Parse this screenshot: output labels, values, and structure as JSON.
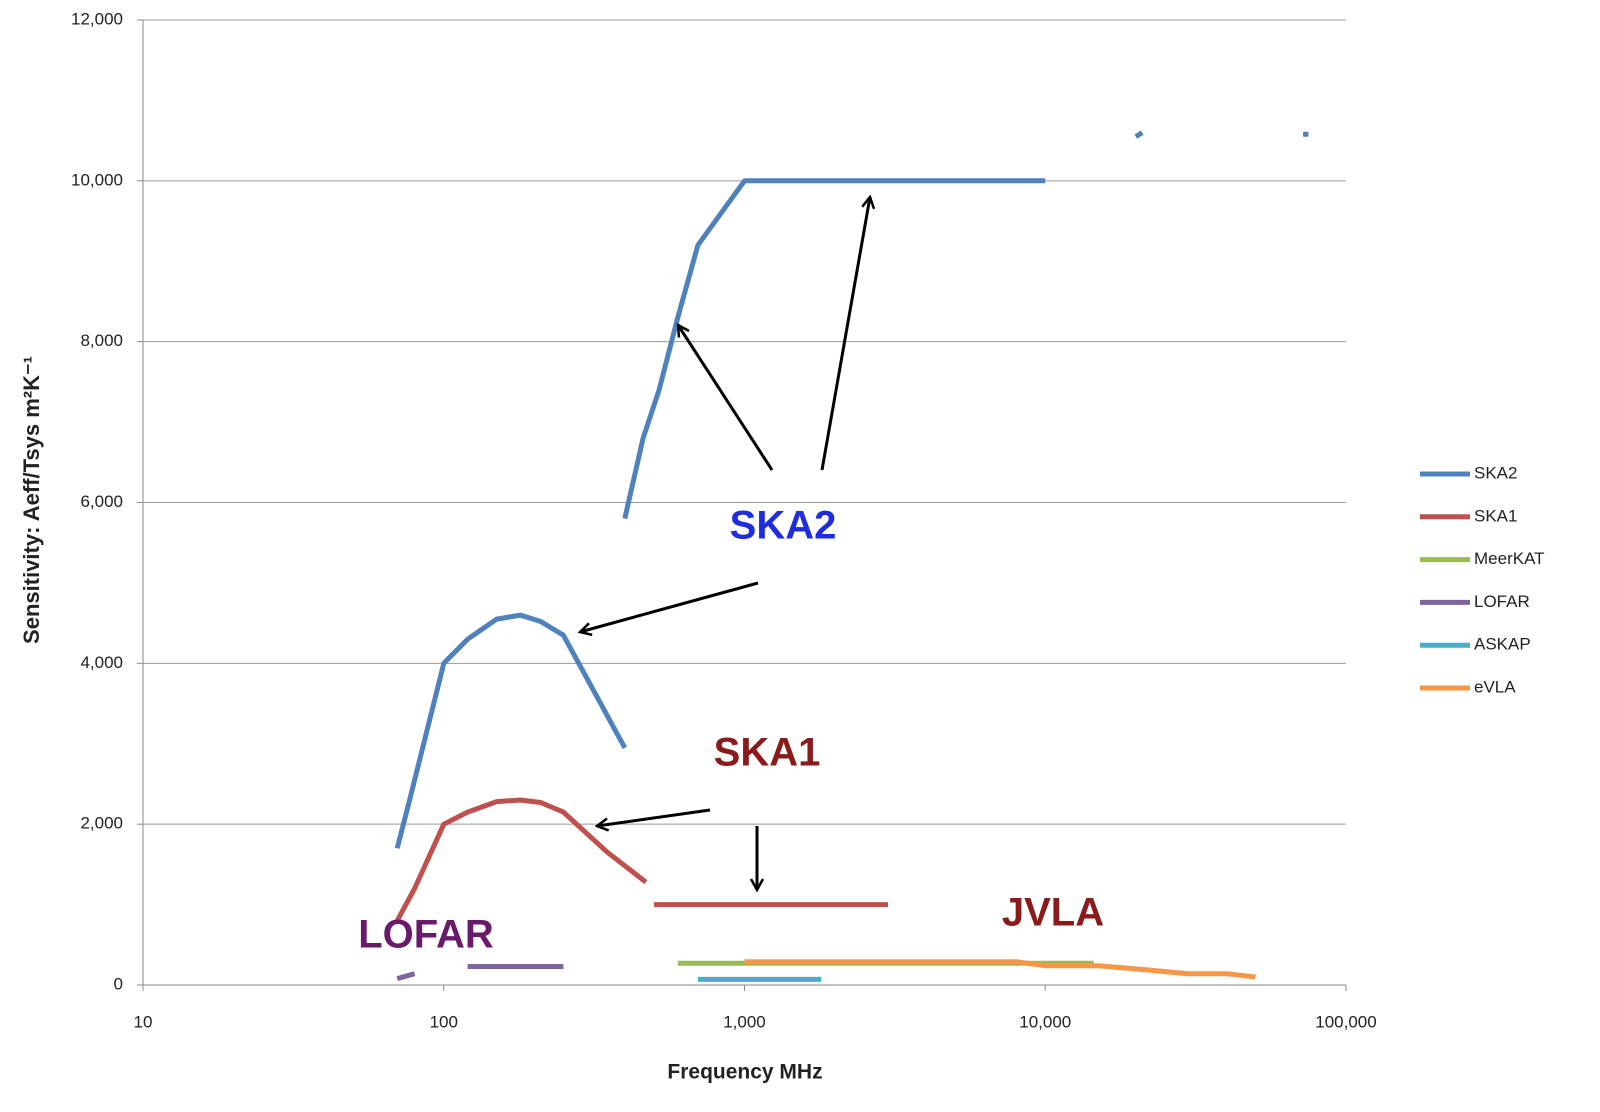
{
  "chart_data": {
    "type": "line",
    "xlabel": "Frequency MHz",
    "ylabel": "Sensitivity:  Aeff/Tsys   m²K⁻¹",
    "xscale": "log",
    "xlim": [
      10,
      100000
    ],
    "xticks": [
      10,
      100,
      {
        "value": 1000,
        "label": "1,000"
      },
      {
        "value": 10000,
        "label": "10,000"
      },
      {
        "value": 100000,
        "label": "100,000"
      }
    ],
    "ylim": [
      0,
      12000
    ],
    "yticks": [
      0,
      {
        "value": 2000,
        "label": "2,000"
      },
      {
        "value": 4000,
        "label": "4,000"
      },
      {
        "value": 6000,
        "label": "6,000"
      },
      {
        "value": 8000,
        "label": "8,000"
      },
      {
        "value": 10000,
        "label": "10,000"
      },
      {
        "value": 12000,
        "label": "12,000"
      }
    ],
    "grid": true,
    "legend": "right",
    "series": [
      {
        "name": "SKA2",
        "color": "#4f81bd",
        "x": [
          70,
          77,
          100,
          120,
          150,
          180,
          210,
          250,
          400,
          null,
          400,
          460,
          520,
          600,
          700,
          1000,
          10000,
          null,
          20000,
          21000,
          null,
          72000,
          75000
        ],
        "values": [
          1700,
          2300,
          4000,
          4300,
          4550,
          4600,
          4520,
          4350,
          2950,
          null,
          5800,
          6800,
          7400,
          8300,
          9200,
          10000,
          10000,
          null,
          10550,
          10600,
          null,
          10580,
          10580
        ]
      },
      {
        "name": "SKA1",
        "color": "#c0504d",
        "x": [
          70,
          80,
          100,
          120,
          150,
          180,
          210,
          250,
          350,
          470,
          null,
          500,
          3000
        ],
        "values": [
          800,
          1200,
          2000,
          2150,
          2280,
          2300,
          2270,
          2150,
          1650,
          1280,
          null,
          1000,
          1000
        ]
      },
      {
        "name": "MeerKAT",
        "color": "#9bbb59",
        "x": [
          600,
          14500
        ],
        "values": [
          270,
          270
        ]
      },
      {
        "name": "LOFAR",
        "color": "#8064a2",
        "x": [
          70,
          80,
          null,
          120,
          250
        ],
        "values": [
          80,
          140,
          null,
          230,
          230
        ]
      },
      {
        "name": "ASKAP",
        "color": "#4bacc6",
        "x": [
          700,
          1800
        ],
        "values": [
          70,
          70
        ]
      },
      {
        "name": "eVLA",
        "color": "#f79646",
        "x": [
          1000,
          8000,
          10000,
          15000,
          20000,
          30000,
          40000,
          50000
        ],
        "values": [
          290,
          290,
          240,
          240,
          200,
          140,
          140,
          100
        ]
      }
    ],
    "annotations": [
      "SKA2",
      "SKA1",
      "LOFAR",
      "JVLA"
    ]
  }
}
